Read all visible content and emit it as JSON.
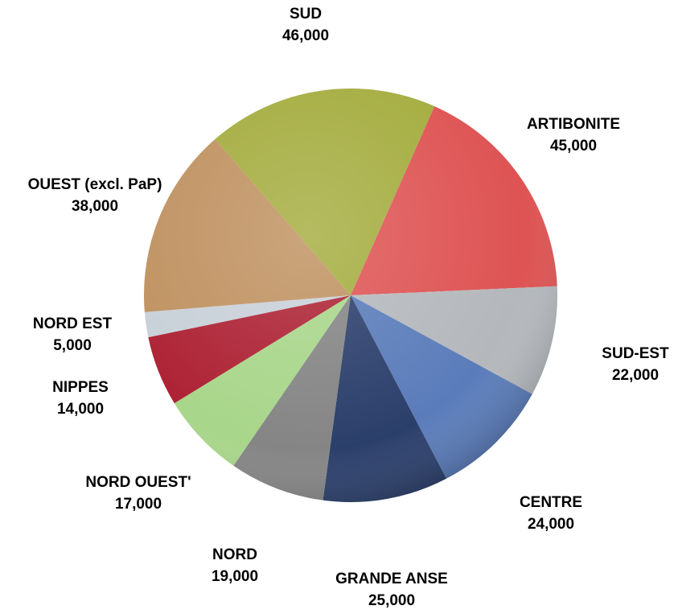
{
  "chart_data": {
    "type": "pie",
    "categories": [
      "SUD",
      "ARTIBONITE",
      "SUD-EST",
      "CENTRE",
      "GRANDE ANSE",
      "NORD",
      "NORD OUEST'",
      "NIPPES",
      "NORD EST",
      "OUEST (excl. PaP)"
    ],
    "values": [
      46000,
      45000,
      22000,
      24000,
      25000,
      19000,
      17000,
      14000,
      5000,
      38000
    ],
    "value_labels": [
      "46,000",
      "45,000",
      "22,000",
      "24,000",
      "25,000",
      "19,000",
      "17,000",
      "14,000",
      "5,000",
      "38,000"
    ],
    "colors": [
      "#a4ac3e",
      "#de5353",
      "#b4b8bc",
      "#5a7cba",
      "#2b3f6b",
      "#858585",
      "#a8d68a",
      "#ad2234",
      "#c8d0d8",
      "#bf9160"
    ]
  }
}
